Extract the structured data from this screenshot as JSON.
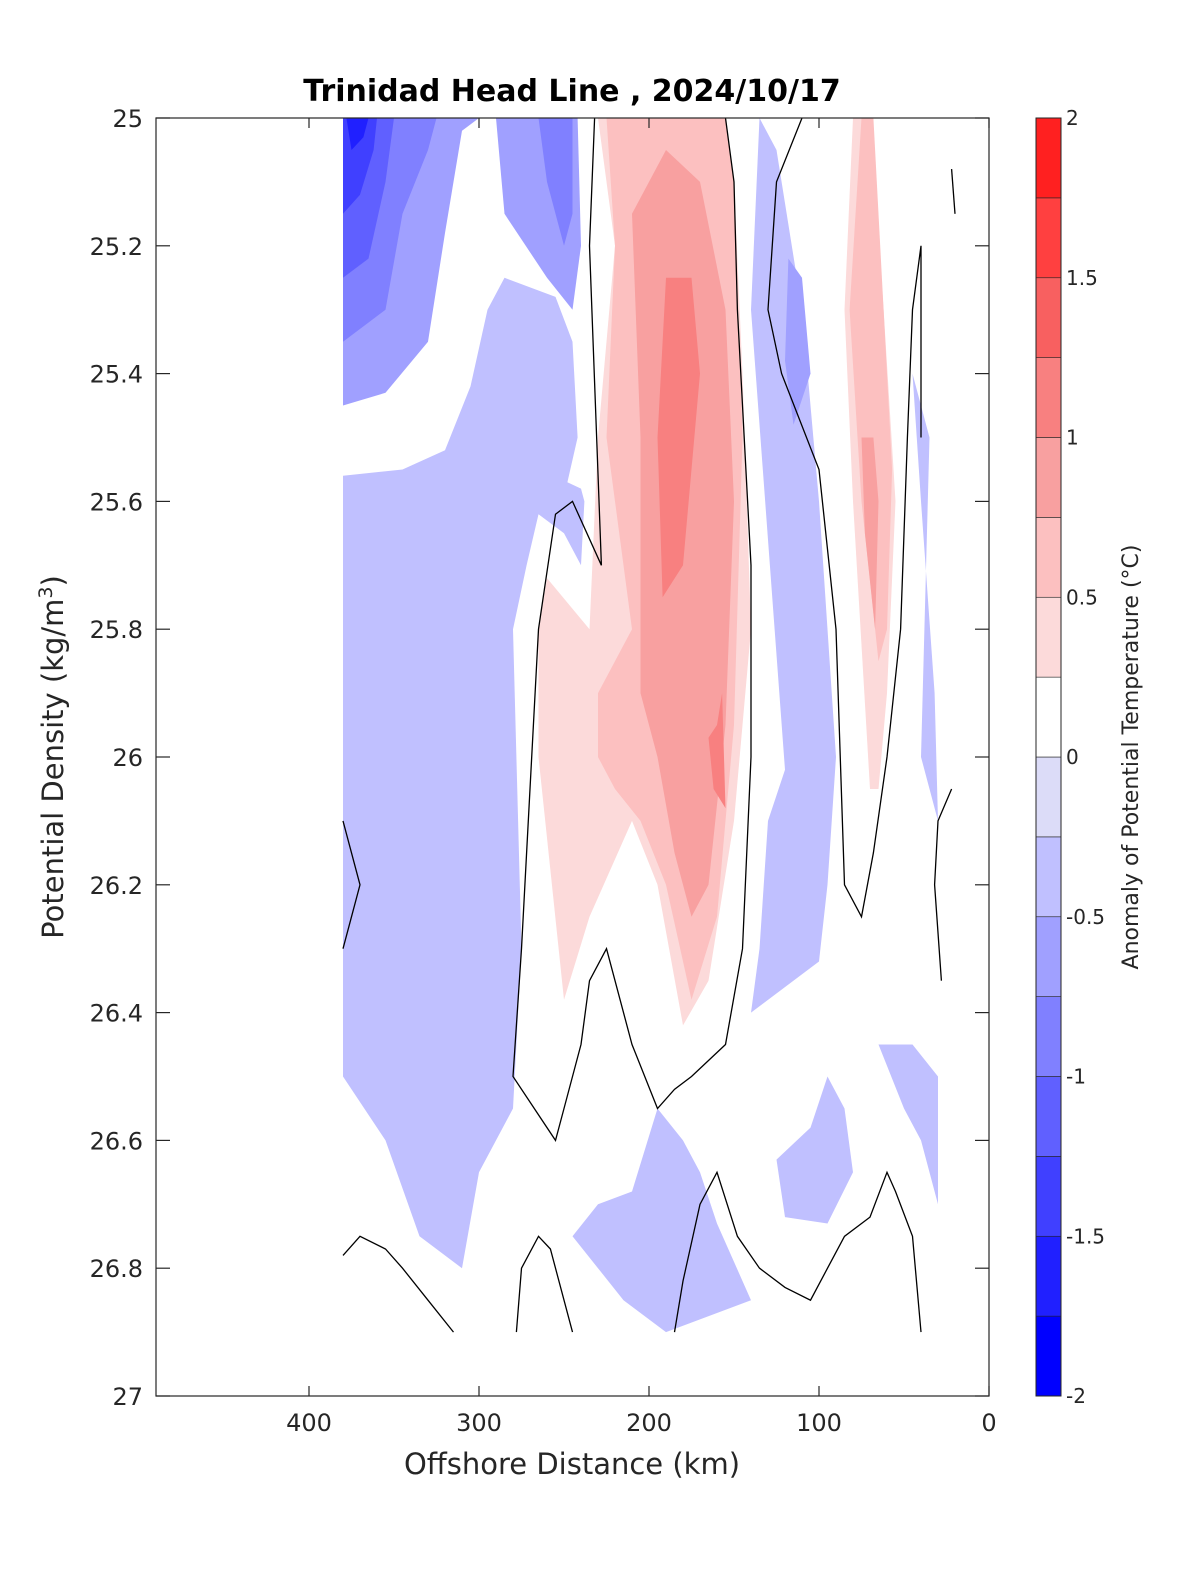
{
  "chart_data": {
    "type": "contour",
    "title": "Trinidad Head Line , 2024/10/17",
    "xlabel": "Offshore Distance (km)",
    "ylabel_main": "Potential Density (kg/m",
    "ylabel_sup": "3",
    "ylabel_close": ")",
    "x_reversed": true,
    "xlim": [
      0,
      490
    ],
    "ylim": [
      25,
      27
    ],
    "y_reversed": true,
    "xticks": [
      400,
      300,
      200,
      100,
      0
    ],
    "xtick_labels": [
      "400",
      "300",
      "200",
      "100",
      "0"
    ],
    "yticks": [
      25,
      25.2,
      25.4,
      25.6,
      25.8,
      26,
      26.2,
      26.4,
      26.6,
      26.8,
      27
    ],
    "ytick_labels": [
      "25",
      "25.2",
      "25.4",
      "25.6",
      "25.8",
      "26",
      "26.2",
      "26.4",
      "26.6",
      "26.8",
      "27"
    ],
    "grid": false,
    "colorbar": {
      "label": "Anomaly of Potential Temperature (°C)",
      "range": [
        -2,
        2
      ],
      "levels": [
        -2,
        -1.75,
        -1.5,
        -1.25,
        -1,
        -0.75,
        -0.5,
        -0.25,
        0,
        0.25,
        0.5,
        0.75,
        1,
        1.25,
        1.5,
        1.75,
        2
      ],
      "tick_values": [
        2,
        1.5,
        1,
        0.5,
        0,
        -0.5,
        -1,
        -1.5,
        -2
      ],
      "tick_labels": [
        "2",
        "1.5",
        "1",
        "0.5",
        "0",
        "-0.5",
        "-1",
        "-1.5",
        "-2"
      ],
      "colors": [
        "#0000ff",
        "#2020ff",
        "#4040ff",
        "#6060ff",
        "#8080ff",
        "#a0a0ff",
        "#c0c0ff",
        "#dcdcf8",
        "#ffffff",
        "#fcdada",
        "#fcc0c0",
        "#f8a0a0",
        "#f88080",
        "#f86060",
        "#ff4040",
        "#ff2020",
        "#ff0000"
      ]
    },
    "data_extent": {
      "x_min_km": 20,
      "x_max_km": 380,
      "density_min": 25,
      "density_max": 26.9
    },
    "regions": [
      {
        "anomaly": -0.375,
        "points": [
          [
            380,
            25.0
          ],
          [
            380,
            25.56
          ],
          [
            345,
            25.55
          ],
          [
            320,
            25.52
          ],
          [
            305,
            25.42
          ],
          [
            295,
            25.3
          ],
          [
            285,
            25.25
          ],
          [
            255,
            25.28
          ],
          [
            245,
            25.35
          ],
          [
            242,
            25.5
          ],
          [
            248,
            25.57
          ],
          [
            240,
            25.58
          ],
          [
            238,
            25.6
          ],
          [
            240,
            25.7
          ],
          [
            250,
            25.65
          ],
          [
            265,
            25.62
          ],
          [
            272,
            25.7
          ],
          [
            280,
            25.8
          ],
          [
            275,
            26.3
          ],
          [
            280,
            26.55
          ],
          [
            290,
            26.6
          ],
          [
            300,
            26.65
          ],
          [
            310,
            26.8
          ],
          [
            335,
            26.75
          ],
          [
            355,
            26.6
          ],
          [
            380,
            26.5
          ]
        ]
      },
      {
        "anomaly": -0.375,
        "points": [
          [
            120,
            26.02
          ],
          [
            130,
            26.1
          ],
          [
            135,
            26.3
          ],
          [
            140,
            26.4
          ],
          [
            100,
            26.32
          ],
          [
            95,
            26.2
          ],
          [
            90,
            26.0
          ],
          [
            100,
            25.6
          ],
          [
            110,
            25.3
          ],
          [
            125,
            25.05
          ],
          [
            135,
            25.0
          ],
          [
            140,
            25.3
          ]
        ]
      },
      {
        "anomaly": -0.375,
        "points": [
          [
            45,
            25.4
          ],
          [
            40,
            25.6
          ],
          [
            32,
            25.9
          ],
          [
            30,
            26.1
          ],
          [
            40,
            26.0
          ],
          [
            35,
            25.5
          ]
        ]
      },
      {
        "anomaly": -0.375,
        "points": [
          [
            65,
            26.45
          ],
          [
            50,
            26.55
          ],
          [
            40,
            26.6
          ],
          [
            30,
            26.7
          ],
          [
            30,
            26.5
          ],
          [
            45,
            26.45
          ]
        ]
      },
      {
        "anomaly": -0.375,
        "points": [
          [
            105,
            26.58
          ],
          [
            125,
            26.63
          ],
          [
            120,
            26.72
          ],
          [
            95,
            26.73
          ],
          [
            80,
            26.65
          ],
          [
            85,
            26.55
          ],
          [
            95,
            26.5
          ]
        ]
      },
      {
        "anomaly": -0.375,
        "points": [
          [
            195,
            26.55
          ],
          [
            180,
            26.6
          ],
          [
            170,
            26.65
          ],
          [
            160,
            26.73
          ],
          [
            140,
            26.85
          ],
          [
            190,
            26.9
          ],
          [
            215,
            26.85
          ],
          [
            230,
            26.8
          ],
          [
            245,
            26.75
          ],
          [
            230,
            26.7
          ],
          [
            210,
            26.68
          ]
        ]
      },
      {
        "anomaly": -0.625,
        "points": [
          [
            380,
            25.0
          ],
          [
            380,
            25.45
          ],
          [
            355,
            25.43
          ],
          [
            330,
            25.35
          ],
          [
            320,
            25.18
          ],
          [
            310,
            25.02
          ],
          [
            300,
            25.0
          ]
        ]
      },
      {
        "anomaly": -0.625,
        "points": [
          [
            290,
            25.0
          ],
          [
            285,
            25.15
          ],
          [
            260,
            25.25
          ],
          [
            245,
            25.3
          ],
          [
            240,
            25.2
          ],
          [
            242,
            25.0
          ]
        ]
      },
      {
        "anomaly": -0.625,
        "points": [
          [
            110,
            25.25
          ],
          [
            105,
            25.4
          ],
          [
            115,
            25.48
          ],
          [
            120,
            25.38
          ],
          [
            118,
            25.22
          ]
        ]
      },
      {
        "anomaly": -0.875,
        "points": [
          [
            380,
            25.0
          ],
          [
            380,
            25.35
          ],
          [
            355,
            25.3
          ],
          [
            345,
            25.15
          ],
          [
            330,
            25.05
          ],
          [
            325,
            25.0
          ]
        ]
      },
      {
        "anomaly": -0.875,
        "points": [
          [
            265,
            25.0
          ],
          [
            260,
            25.1
          ],
          [
            250,
            25.2
          ],
          [
            245,
            25.15
          ],
          [
            245,
            25.0
          ]
        ]
      },
      {
        "anomaly": -1.125,
        "points": [
          [
            380,
            25.0
          ],
          [
            380,
            25.25
          ],
          [
            365,
            25.22
          ],
          [
            355,
            25.1
          ],
          [
            350,
            25.0
          ]
        ]
      },
      {
        "anomaly": -1.375,
        "points": [
          [
            380,
            25.0
          ],
          [
            380,
            25.15
          ],
          [
            370,
            25.12
          ],
          [
            362,
            25.05
          ],
          [
            360,
            25.0
          ]
        ]
      },
      {
        "anomaly": -1.625,
        "points": [
          [
            378,
            25.0
          ],
          [
            375,
            25.05
          ],
          [
            368,
            25.03
          ],
          [
            365,
            25.0
          ]
        ]
      },
      {
        "anomaly": 0.375,
        "points": [
          [
            230,
            25.0
          ],
          [
            220,
            25.2
          ],
          [
            230,
            25.5
          ],
          [
            235,
            25.8
          ],
          [
            260,
            25.72
          ],
          [
            265,
            25.8
          ],
          [
            265,
            26.0
          ],
          [
            250,
            26.38
          ],
          [
            235,
            26.25
          ],
          [
            210,
            26.1
          ],
          [
            195,
            26.2
          ],
          [
            180,
            26.42
          ],
          [
            165,
            26.35
          ],
          [
            150,
            26.1
          ],
          [
            140,
            25.8
          ],
          [
            145,
            25.4
          ],
          [
            150,
            25.1
          ],
          [
            160,
            25.0
          ]
        ]
      },
      {
        "anomaly": 0.375,
        "points": [
          [
            70,
            25.0
          ],
          [
            62,
            25.3
          ],
          [
            55,
            25.6
          ],
          [
            60,
            25.9
          ],
          [
            65,
            26.05
          ],
          [
            70,
            26.05
          ],
          [
            80,
            25.6
          ],
          [
            85,
            25.3
          ],
          [
            80,
            25.0
          ]
        ]
      },
      {
        "anomaly": 0.625,
        "points": [
          [
            225,
            25.0
          ],
          [
            220,
            25.2
          ],
          [
            225,
            25.5
          ],
          [
            210,
            25.8
          ],
          [
            230,
            25.9
          ],
          [
            230,
            26.0
          ],
          [
            220,
            26.05
          ],
          [
            205,
            26.1
          ],
          [
            190,
            26.2
          ],
          [
            175,
            26.38
          ],
          [
            160,
            26.25
          ],
          [
            150,
            25.95
          ],
          [
            145,
            25.5
          ],
          [
            150,
            25.1
          ],
          [
            155,
            25.0
          ]
        ]
      },
      {
        "anomaly": 0.625,
        "points": [
          [
            68,
            25.0
          ],
          [
            62,
            25.3
          ],
          [
            57,
            25.55
          ],
          [
            60,
            25.8
          ],
          [
            65,
            25.85
          ],
          [
            75,
            25.6
          ],
          [
            82,
            25.3
          ],
          [
            75,
            25.0
          ]
        ]
      },
      {
        "anomaly": 0.875,
        "points": [
          [
            210,
            25.15
          ],
          [
            205,
            25.5
          ],
          [
            205,
            25.9
          ],
          [
            195,
            26.0
          ],
          [
            185,
            26.15
          ],
          [
            175,
            26.25
          ],
          [
            165,
            26.2
          ],
          [
            155,
            25.95
          ],
          [
            150,
            25.6
          ],
          [
            155,
            25.3
          ],
          [
            170,
            25.1
          ],
          [
            190,
            25.05
          ]
        ]
      },
      {
        "anomaly": 0.875,
        "points": [
          [
            68,
            25.5
          ],
          [
            65,
            25.6
          ],
          [
            67,
            25.8
          ],
          [
            73,
            25.65
          ],
          [
            75,
            25.5
          ]
        ]
      },
      {
        "anomaly": 1.125,
        "points": [
          [
            190,
            25.25
          ],
          [
            195,
            25.5
          ],
          [
            192,
            25.75
          ],
          [
            180,
            25.7
          ],
          [
            170,
            25.4
          ],
          [
            175,
            25.25
          ]
        ]
      },
      {
        "anomaly": 1.125,
        "points": [
          [
            160,
            25.95
          ],
          [
            165,
            25.97
          ],
          [
            162,
            26.05
          ],
          [
            155,
            26.08
          ],
          [
            157,
            25.9
          ]
        ]
      }
    ],
    "contour_lines_zero": [
      [
        [
          232,
          25.0
        ],
        [
          235,
          25.2
        ],
        [
          228,
          25.7
        ],
        [
          245,
          25.6
        ],
        [
          255,
          25.62
        ],
        [
          265,
          25.8
        ],
        [
          275,
          26.3
        ],
        [
          280,
          26.5
        ],
        [
          255,
          26.6
        ],
        [
          250,
          26.55
        ],
        [
          240,
          26.45
        ],
        [
          235,
          26.35
        ],
        [
          225,
          26.3
        ],
        [
          210,
          26.45
        ],
        [
          195,
          26.55
        ],
        [
          185,
          26.52
        ],
        [
          175,
          26.5
        ],
        [
          155,
          26.45
        ],
        [
          145,
          26.3
        ],
        [
          140,
          26.0
        ],
        [
          140,
          25.7
        ],
        [
          148,
          25.3
        ],
        [
          150,
          25.1
        ],
        [
          155,
          25.0
        ]
      ],
      [
        [
          110,
          25.0
        ],
        [
          125,
          25.1
        ],
        [
          130,
          25.3
        ],
        [
          122,
          25.4
        ],
        [
          100,
          25.55
        ],
        [
          90,
          25.8
        ],
        [
          85,
          26.2
        ],
        [
          75,
          26.25
        ],
        [
          68,
          26.15
        ],
        [
          60,
          26.0
        ],
        [
          52,
          25.8
        ],
        [
          48,
          25.5
        ],
        [
          45,
          25.3
        ],
        [
          40,
          25.2
        ],
        [
          40,
          25.5
        ]
      ],
      [
        [
          380,
          26.1
        ],
        [
          370,
          26.2
        ],
        [
          380,
          26.3
        ]
      ],
      [
        [
          380,
          26.78
        ],
        [
          370,
          26.75
        ],
        [
          355,
          26.77
        ],
        [
          345,
          26.8
        ],
        [
          330,
          26.85
        ],
        [
          315,
          26.9
        ]
      ],
      [
        [
          278,
          26.9
        ],
        [
          275,
          26.8
        ],
        [
          265,
          26.75
        ],
        [
          258,
          26.77
        ],
        [
          245,
          26.9
        ]
      ],
      [
        [
          185,
          26.9
        ],
        [
          180,
          26.82
        ],
        [
          170,
          26.7
        ],
        [
          160,
          26.65
        ],
        [
          148,
          26.75
        ],
        [
          135,
          26.8
        ],
        [
          120,
          26.83
        ],
        [
          105,
          26.85
        ],
        [
          95,
          26.8
        ],
        [
          85,
          26.75
        ],
        [
          70,
          26.72
        ],
        [
          60,
          26.65
        ],
        [
          55,
          26.68
        ],
        [
          45,
          26.75
        ],
        [
          40,
          26.9
        ]
      ],
      [
        [
          22,
          25.08
        ],
        [
          20,
          25.15
        ]
      ],
      [
        [
          22,
          26.05
        ],
        [
          30,
          26.1
        ],
        [
          32,
          26.2
        ],
        [
          28,
          26.35
        ]
      ]
    ]
  }
}
